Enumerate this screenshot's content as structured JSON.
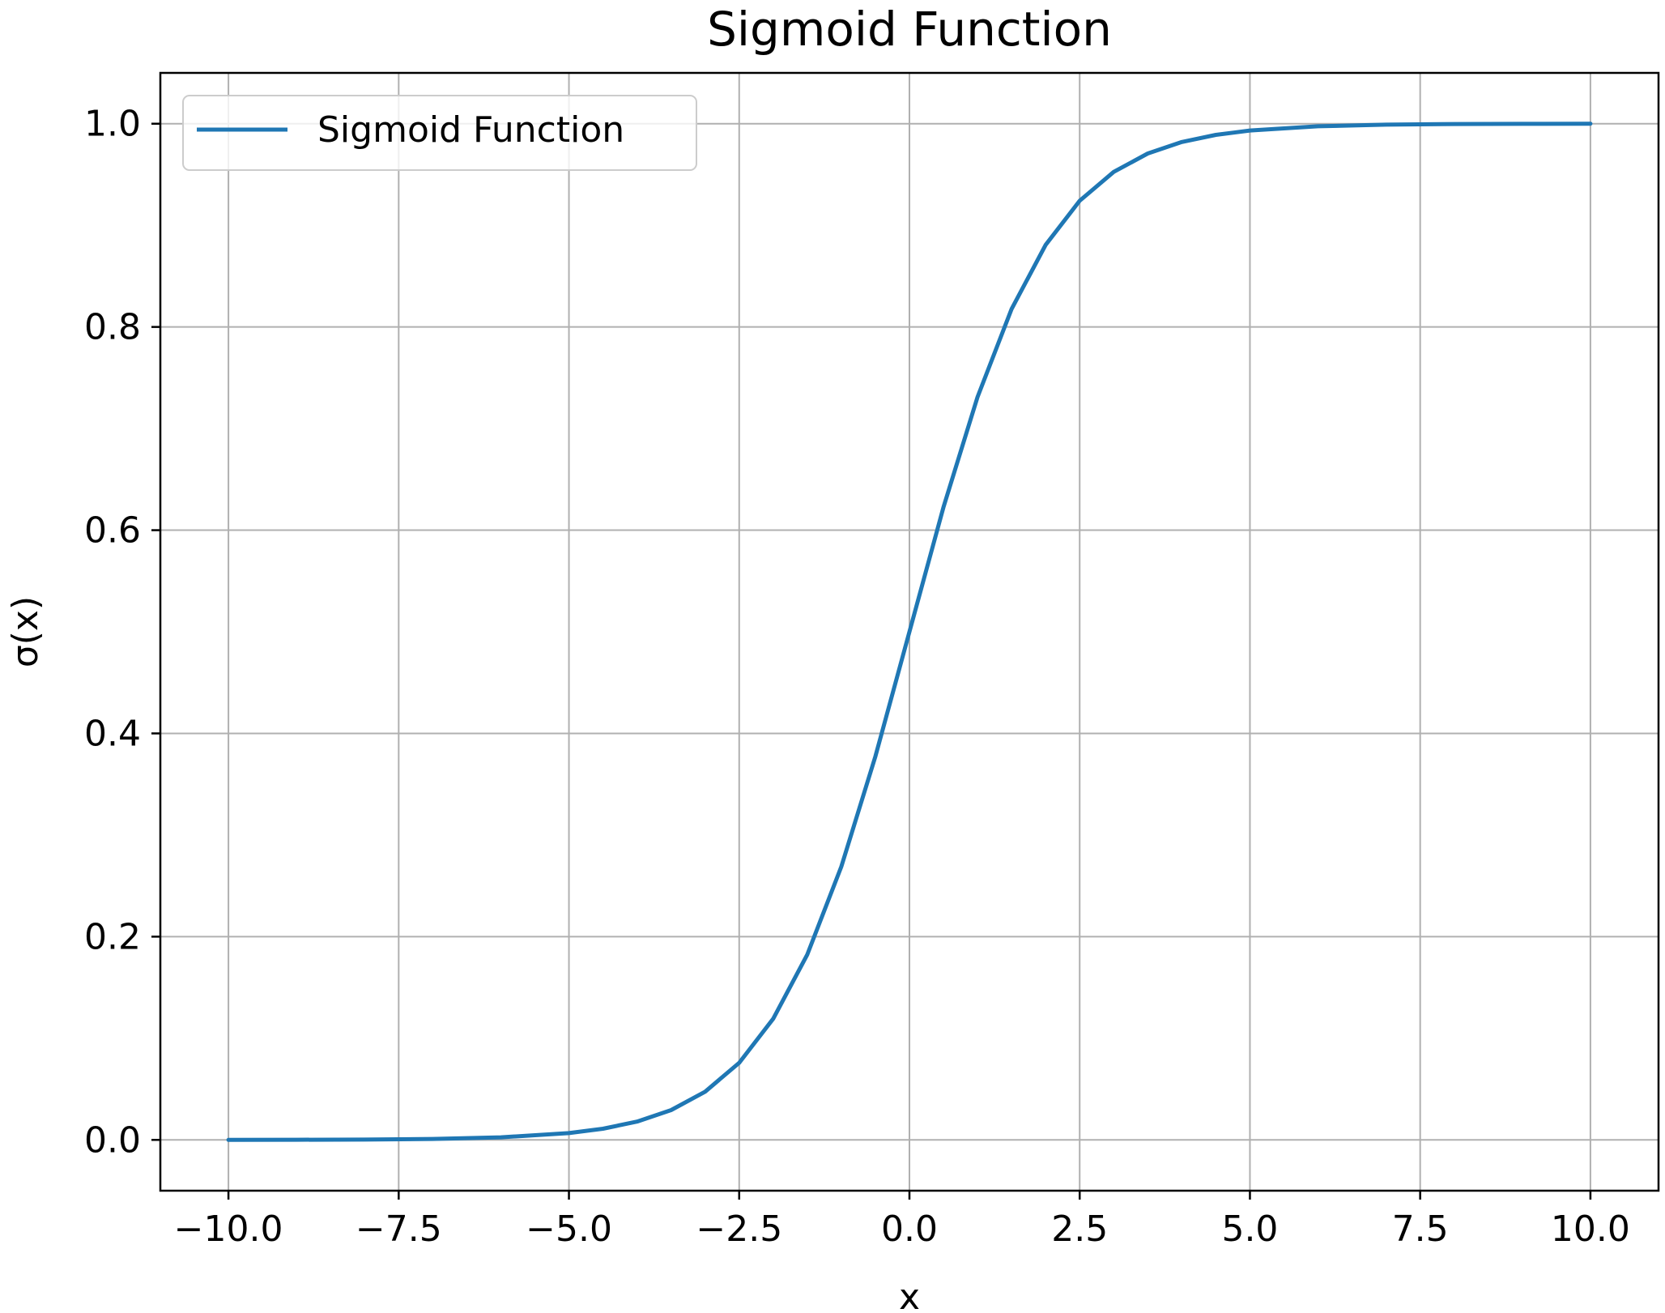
{
  "chart_data": {
    "type": "line",
    "title": "Sigmoid Function",
    "xlabel": "x",
    "ylabel": "σ(x)",
    "xlim": [
      -11.0,
      11.0
    ],
    "ylim": [
      -0.05,
      1.05
    ],
    "x_ticks": [
      -10.0,
      -7.5,
      -5.0,
      -2.5,
      0.0,
      2.5,
      5.0,
      7.5,
      10.0
    ],
    "x_tick_labels": [
      "−10.0",
      "−7.5",
      "−5.0",
      "−2.5",
      "0.0",
      "2.5",
      "5.0",
      "7.5",
      "10.0"
    ],
    "y_ticks": [
      0.0,
      0.2,
      0.4,
      0.6,
      0.8,
      1.0
    ],
    "y_tick_labels": [
      "0.0",
      "0.2",
      "0.4",
      "0.6",
      "0.8",
      "1.0"
    ],
    "grid": true,
    "legend_position": "top-left",
    "series": [
      {
        "name": "Sigmoid Function",
        "color": "#1f77b4",
        "x": [
          -10.0,
          -9.0,
          -8.0,
          -7.0,
          -6.0,
          -5.0,
          -4.5,
          -4.0,
          -3.5,
          -3.0,
          -2.5,
          -2.0,
          -1.5,
          -1.0,
          -0.5,
          0.0,
          0.5,
          1.0,
          1.5,
          2.0,
          2.5,
          3.0,
          3.5,
          4.0,
          4.5,
          5.0,
          6.0,
          7.0,
          8.0,
          9.0,
          10.0
        ],
        "y": [
          0.0,
          0.0001,
          0.0003,
          0.0009,
          0.0025,
          0.0067,
          0.011,
          0.018,
          0.0293,
          0.0474,
          0.0759,
          0.1192,
          0.1824,
          0.2689,
          0.3775,
          0.5,
          0.6225,
          0.7311,
          0.8176,
          0.8808,
          0.9241,
          0.9526,
          0.9707,
          0.982,
          0.989,
          0.9933,
          0.9975,
          0.9991,
          0.9997,
          0.9999,
          1.0
        ]
      }
    ]
  }
}
